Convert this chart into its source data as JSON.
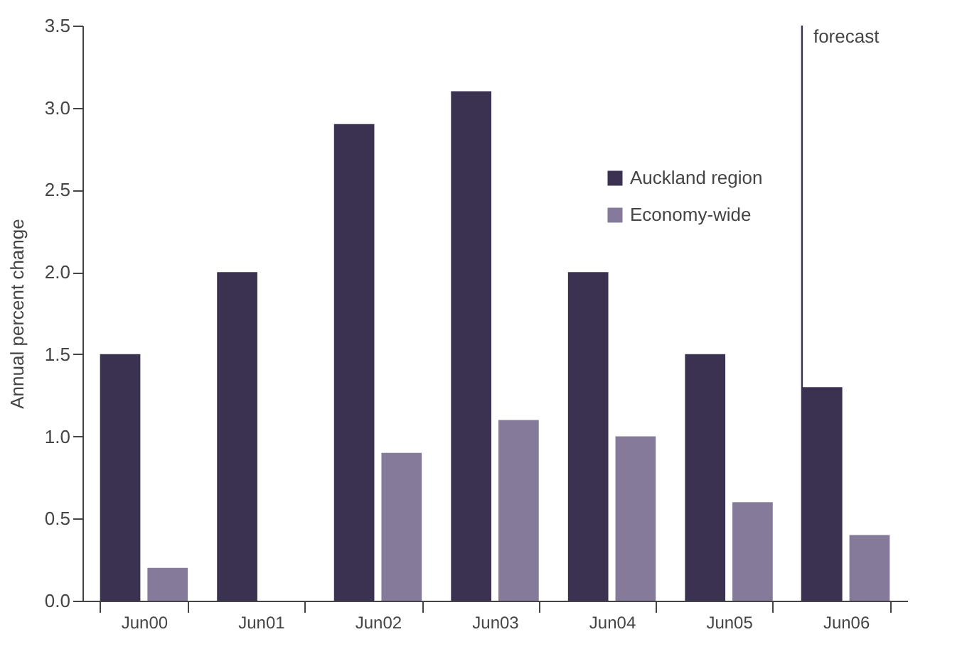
{
  "chart_data": {
    "type": "bar",
    "ylabel": "Annual percent change",
    "categories": [
      "Jun00",
      "Jun01",
      "Jun02",
      "Jun03",
      "Jun04",
      "Jun05",
      "Jun06"
    ],
    "series": [
      {
        "name": "Auckland region",
        "color": "#3b3150",
        "values": [
          1.5,
          2.0,
          2.9,
          3.1,
          2.0,
          1.5,
          1.3
        ]
      },
      {
        "name": "Economy-wide",
        "color": "#857a99",
        "values": [
          0.2,
          0.0,
          0.9,
          1.1,
          1.0,
          0.6,
          0.4
        ]
      }
    ],
    "ylim": [
      0,
      3.5
    ],
    "yticks": [
      {
        "value": 0,
        "label": "0.0"
      },
      {
        "value": 0.5,
        "label": "0.5"
      },
      {
        "value": 1,
        "label": "1.0"
      },
      {
        "value": 1.5,
        "label": "1.5"
      },
      {
        "value": 2,
        "label": "2.0"
      },
      {
        "value": 2.5,
        "label": "2.5"
      },
      {
        "value": 3,
        "label": "3.0"
      },
      {
        "value": 3.5,
        "label": "3.5"
      }
    ],
    "ref_lines": [
      {
        "axis": "x",
        "value": "Jun06",
        "label": "forecast",
        "color": "#3b3150"
      }
    ],
    "grid": false,
    "legend": "top right"
  }
}
